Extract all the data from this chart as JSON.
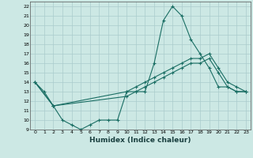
{
  "xlabel": "Humidex (Indice chaleur)",
  "bg_color": "#cce8e4",
  "grid_color": "#aacccc",
  "line_color": "#1a6e64",
  "xlim": [
    -0.5,
    23.5
  ],
  "ylim": [
    9,
    22.5
  ],
  "xticks": [
    0,
    1,
    2,
    3,
    4,
    5,
    6,
    7,
    8,
    9,
    10,
    11,
    12,
    13,
    14,
    15,
    16,
    17,
    18,
    19,
    20,
    21,
    22,
    23
  ],
  "yticks": [
    9,
    10,
    11,
    12,
    13,
    14,
    15,
    16,
    17,
    18,
    19,
    20,
    21,
    22
  ],
  "series": [
    {
      "x": [
        0,
        1,
        2,
        3,
        4,
        5,
        6,
        7,
        8,
        9,
        10,
        11,
        12,
        13,
        14,
        15,
        16,
        17,
        18,
        19,
        20,
        21,
        22,
        23
      ],
      "y": [
        14,
        13,
        11.5,
        10,
        9.5,
        9,
        9.5,
        10,
        10,
        10,
        13,
        13,
        13,
        16,
        20.5,
        22,
        21,
        18.5,
        17,
        15.5,
        13.5,
        13.5,
        13,
        13
      ]
    },
    {
      "x": [
        0,
        2,
        10,
        11,
        12,
        13,
        14,
        15,
        16,
        17,
        18,
        19,
        20,
        21,
        22,
        23
      ],
      "y": [
        14,
        11.5,
        13,
        13.5,
        14,
        14.5,
        15,
        15.5,
        16,
        16.5,
        16.5,
        17,
        15.5,
        14,
        13.5,
        13
      ]
    },
    {
      "x": [
        0,
        2,
        10,
        11,
        12,
        13,
        14,
        15,
        16,
        17,
        18,
        19,
        20,
        21,
        22,
        23
      ],
      "y": [
        14,
        11.5,
        12.5,
        13,
        13.5,
        14,
        14.5,
        15,
        15.5,
        16,
        16,
        16.5,
        15,
        13.5,
        13,
        13
      ]
    }
  ]
}
